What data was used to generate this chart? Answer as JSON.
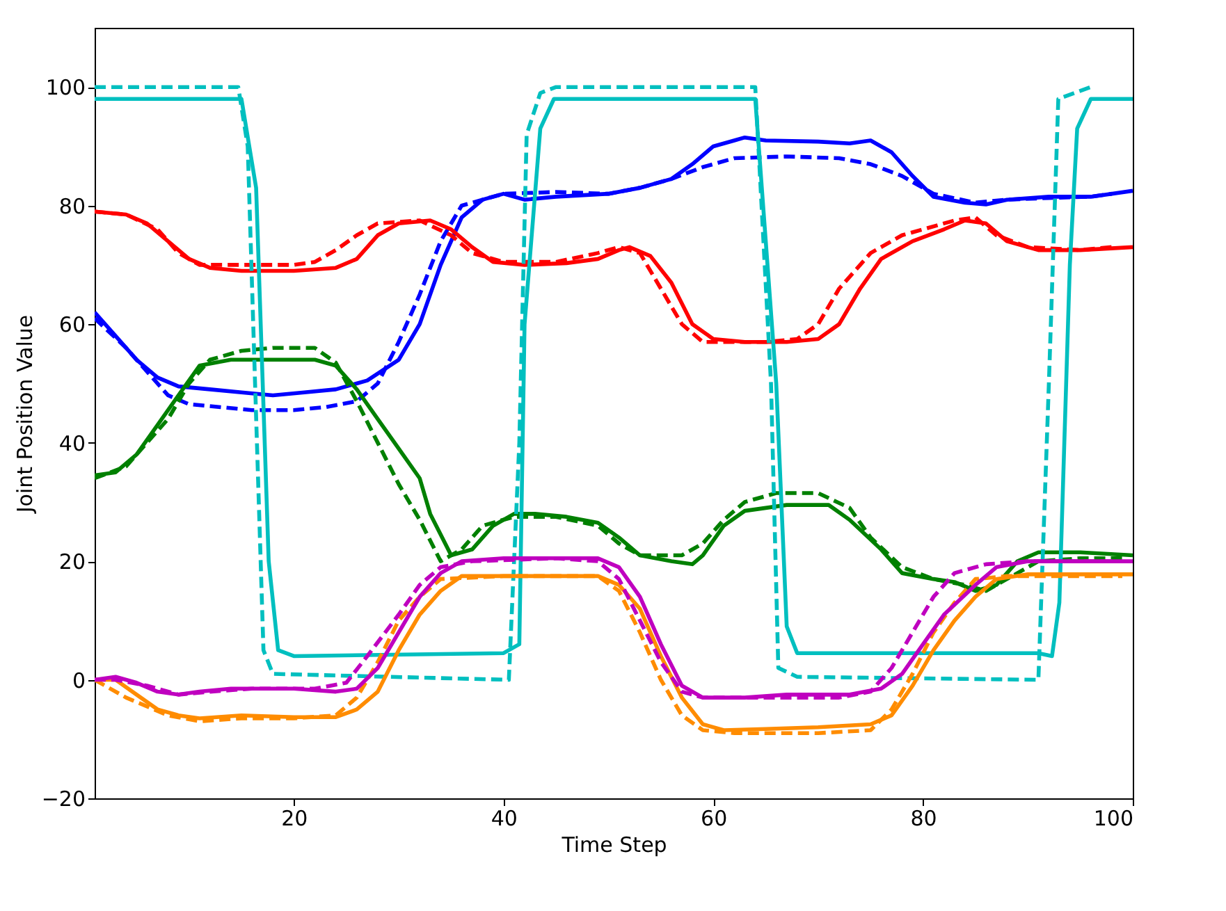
{
  "chart_data": {
    "type": "line",
    "xlabel": "Time Step",
    "ylabel": "Joint Position Value",
    "xlim": [
      1,
      100
    ],
    "ylim": [
      -20,
      110
    ],
    "xticks": [
      20,
      40,
      60,
      80,
      100
    ],
    "yticks": [
      -20,
      0,
      20,
      40,
      60,
      80,
      100
    ],
    "marker": "none",
    "series": [
      {
        "color": "#0000ff",
        "line_style": "solid",
        "x": [
          1,
          3,
          5,
          7,
          9,
          12,
          15,
          18,
          21,
          24,
          27,
          30,
          32,
          34,
          36,
          38,
          40,
          42,
          45,
          50,
          53,
          56,
          58,
          60,
          62,
          63,
          65,
          70,
          73,
          75,
          77,
          79,
          81,
          84,
          86,
          88,
          92,
          96,
          100
        ],
        "values": [
          62,
          58,
          54,
          51,
          49.5,
          49,
          48.5,
          48,
          48.5,
          49,
          50.5,
          54,
          60,
          70,
          78,
          81,
          82,
          81,
          81.5,
          82,
          83,
          84.5,
          87,
          90,
          91,
          91.5,
          91,
          90.8,
          90.5,
          91,
          89,
          85,
          81.5,
          80.5,
          80.2,
          81,
          81.5,
          81.5,
          82.5
        ]
      },
      {
        "color": "#0000ff",
        "line_style": "dashed",
        "x": [
          1,
          4,
          6,
          8,
          10,
          13,
          16,
          20,
          23,
          26,
          28,
          30,
          32,
          34,
          36,
          40,
          45,
          50,
          53,
          56,
          59,
          62,
          67,
          72,
          75,
          78,
          81,
          85,
          88,
          92,
          96,
          98
        ],
        "values": [
          61,
          56,
          52,
          48,
          46.5,
          46,
          45.5,
          45.5,
          46,
          47,
          50,
          57,
          65,
          74,
          80,
          82,
          82.3,
          82,
          83,
          84.5,
          86.5,
          88,
          88.3,
          88,
          87,
          85,
          82,
          80.5,
          81,
          81.3,
          81.5,
          82
        ]
      },
      {
        "color": "#ff0000",
        "line_style": "solid",
        "x": [
          1,
          4,
          6,
          8,
          10,
          12,
          15,
          20,
          24,
          26,
          28,
          30,
          33,
          35,
          37,
          39,
          42,
          46,
          49,
          51,
          52,
          54,
          56,
          58,
          60,
          63,
          67,
          70,
          72,
          74,
          76,
          79,
          82,
          84,
          86,
          88,
          91,
          95,
          100
        ],
        "values": [
          79,
          78.5,
          77,
          74,
          71,
          69.5,
          69,
          69,
          69.5,
          71,
          75,
          77,
          77.5,
          76,
          73,
          70.5,
          70,
          70.3,
          71,
          72.5,
          73,
          71.5,
          67,
          60,
          57.5,
          57,
          57,
          57.5,
          60,
          66,
          71,
          74,
          76,
          77.5,
          77,
          74,
          72.5,
          72.5,
          73
        ]
      },
      {
        "color": "#ff0000",
        "line_style": "dashed",
        "x": [
          1,
          4,
          7,
          9,
          11,
          15,
          20,
          22,
          24,
          26,
          28,
          32,
          35,
          37,
          40,
          45,
          49,
          51,
          53,
          55,
          57,
          59,
          65,
          68,
          70,
          72,
          75,
          78,
          83,
          85,
          87,
          90,
          95,
          98
        ],
        "values": [
          79,
          78.5,
          76,
          72,
          70,
          70,
          70,
          70.5,
          72.5,
          75,
          77,
          77.5,
          75,
          72,
          70.5,
          70.5,
          72,
          73,
          72,
          66,
          60,
          57,
          57,
          57.5,
          60,
          66,
          72,
          75,
          77.5,
          78,
          75,
          73,
          72.5,
          73
        ]
      },
      {
        "color": "#008000",
        "line_style": "solid",
        "x": [
          1,
          3,
          5,
          7,
          9,
          11,
          14,
          18,
          22,
          24,
          26,
          28,
          30,
          32,
          33,
          35,
          37,
          39,
          41,
          43,
          46,
          49,
          51,
          53,
          56,
          58,
          59,
          61,
          63,
          67,
          71,
          73,
          76,
          78,
          81,
          83,
          85,
          87,
          89,
          91,
          95,
          100
        ],
        "values": [
          34.5,
          35,
          38,
          43,
          48,
          53,
          54,
          54,
          54,
          53,
          49,
          44,
          39,
          34,
          28,
          21,
          22,
          26,
          28,
          28,
          27.5,
          26.5,
          24,
          21,
          20,
          19.5,
          21,
          26,
          28.5,
          29.5,
          29.5,
          27,
          22,
          18,
          17,
          16.5,
          15,
          16,
          20,
          21.5,
          21.5,
          21
        ]
      },
      {
        "color": "#008000",
        "line_style": "dashed",
        "x": [
          1,
          4,
          6,
          8,
          10,
          12,
          15,
          18,
          22,
          24,
          26,
          28,
          30,
          32,
          34,
          36,
          38,
          41,
          45,
          49,
          51,
          53,
          57,
          59,
          61,
          63,
          66,
          70,
          73,
          75,
          78,
          81,
          84,
          86,
          88,
          91,
          95,
          99
        ],
        "values": [
          34,
          36,
          40,
          44,
          50,
          54,
          55.5,
          56,
          56,
          53.5,
          47,
          40,
          33,
          27,
          20,
          22,
          26,
          27.5,
          27.5,
          26,
          23,
          21,
          21,
          23,
          27,
          30,
          31.5,
          31.5,
          29,
          24,
          19,
          17,
          16,
          15,
          17,
          20,
          20.5,
          20.5
        ]
      },
      {
        "color": "#00bfbf",
        "line_style": "solid",
        "x": [
          1,
          15,
          16.4,
          17.6,
          18.5,
          20,
          40,
          41.5,
          42,
          43.5,
          44.8,
          64,
          66,
          67,
          68,
          91,
          92.3,
          93,
          94,
          94.7,
          96,
          100
        ],
        "values": [
          98,
          98,
          83,
          20,
          5,
          4,
          4.5,
          6,
          60,
          93,
          98,
          98,
          50,
          9,
          4.5,
          4.5,
          4,
          13,
          70,
          93,
          98,
          98
        ]
      },
      {
        "color": "#00bfbf",
        "line_style": "dashed",
        "x": [
          1,
          14.7,
          15.6,
          16.3,
          17.1,
          18,
          40.5,
          41.5,
          42.2,
          43.5,
          45,
          64,
          65.5,
          66.2,
          68,
          91,
          92,
          92.9,
          96
        ],
        "values": [
          100,
          100,
          90,
          50,
          5,
          1,
          0,
          40,
          92,
          99,
          100,
          100,
          50,
          2,
          0.5,
          0,
          50,
          98,
          100
        ]
      },
      {
        "color": "#ff8c00",
        "line_style": "solid",
        "x": [
          1,
          3,
          5,
          7,
          9,
          11,
          15,
          20,
          24,
          26,
          28,
          30,
          32,
          34,
          36,
          40,
          45,
          49,
          51,
          53,
          55,
          57,
          59,
          61,
          65,
          70,
          75,
          77,
          79,
          81,
          83,
          85,
          87,
          90,
          95,
          100
        ],
        "values": [
          0,
          0,
          -2.5,
          -5,
          -6,
          -6.5,
          -6,
          -6.3,
          -6.3,
          -5,
          -2,
          5,
          11,
          15,
          17.5,
          17.5,
          17.5,
          17.5,
          16,
          12,
          4,
          -3,
          -7.5,
          -8.5,
          -8.3,
          -8,
          -7.5,
          -6,
          -1,
          5,
          10,
          14,
          17,
          17.8,
          17.8,
          17.8
        ]
      },
      {
        "color": "#ff8c00",
        "line_style": "dashed",
        "x": [
          1,
          4,
          8,
          11,
          15,
          20,
          24,
          26,
          28,
          30,
          32,
          34,
          40,
          49,
          51,
          53,
          55,
          57,
          59,
          62,
          70,
          75,
          77,
          79,
          81,
          83,
          85,
          88,
          95,
          99
        ],
        "values": [
          0,
          -3,
          -6,
          -7,
          -6.5,
          -6.5,
          -6,
          -3,
          3,
          10,
          14,
          17,
          17.5,
          17.5,
          15,
          8,
          0,
          -6,
          -8.5,
          -9,
          -9,
          -8.5,
          -5,
          1,
          8,
          13,
          17,
          17.5,
          17.5,
          17.5
        ]
      },
      {
        "color": "#bf00bf",
        "line_style": "solid",
        "x": [
          1,
          3,
          5,
          7,
          9,
          11,
          14,
          20,
          24,
          26,
          28,
          30,
          32,
          34,
          36,
          40,
          45,
          49,
          51,
          53,
          55,
          57,
          59,
          63,
          67,
          73,
          76,
          78,
          80,
          82,
          85,
          87,
          90,
          95,
          100
        ],
        "values": [
          0,
          0.5,
          -0.5,
          -2,
          -2.5,
          -2,
          -1.5,
          -1.5,
          -2,
          -1.5,
          2,
          8,
          14,
          18,
          20,
          20.5,
          20.5,
          20.5,
          19,
          14,
          6,
          -1,
          -3,
          -3,
          -2.5,
          -2.5,
          -1.5,
          1,
          6,
          11,
          16,
          19,
          20,
          20,
          20
        ]
      },
      {
        "color": "#bf00bf",
        "line_style": "dashed",
        "x": [
          1,
          3,
          6,
          9,
          12,
          16,
          22,
          25,
          27,
          30,
          32,
          34,
          37,
          45,
          49,
          51,
          53,
          55,
          57,
          59,
          65,
          72,
          75,
          77,
          79,
          81,
          83,
          86,
          90,
          95,
          98
        ],
        "values": [
          0,
          0,
          -1,
          -2.5,
          -2,
          -1.5,
          -1.5,
          -0.5,
          4,
          11,
          16,
          19,
          20,
          20.5,
          20,
          17,
          10,
          3,
          -2,
          -3,
          -3,
          -3,
          -2,
          2,
          8,
          14,
          18,
          19.5,
          20,
          20,
          20
        ]
      }
    ]
  }
}
